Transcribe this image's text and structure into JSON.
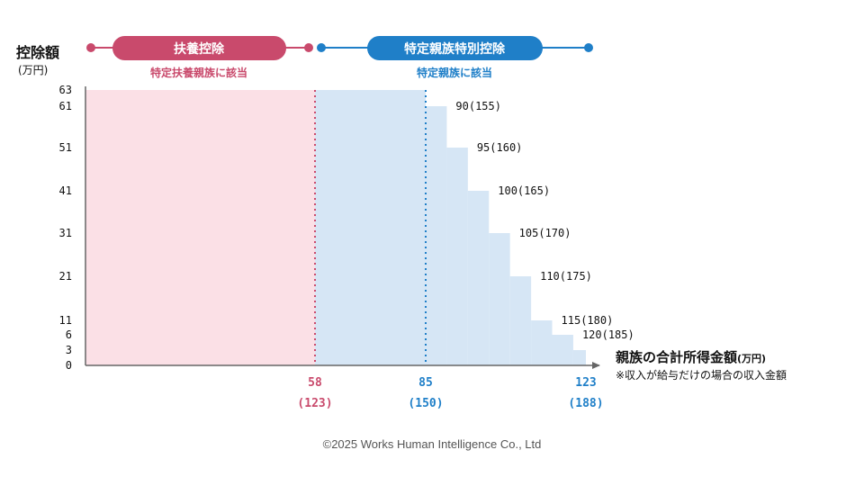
{
  "chart_data": {
    "type": "area",
    "ylabel": "控除額",
    "ylabel_unit": "(万円)",
    "xlabel": "親族の合計所得金額",
    "xlabel_unit": "(万円)",
    "x_note": "※収入が給与だけの場合の収入金額",
    "y_ticks": [
      0,
      3,
      6,
      11,
      21,
      31,
      41,
      51,
      61,
      63
    ],
    "x_ticks": [
      {
        "value": 58,
        "label": "58",
        "sub": "(123)",
        "color": "#c94a6c"
      },
      {
        "value": 85,
        "label": "85",
        "sub": "(150)",
        "color": "#1f7fc8"
      },
      {
        "value": 123,
        "label": "123",
        "sub": "(188)",
        "color": "#1f7fc8"
      }
    ],
    "regions": [
      {
        "name": "扶養控除",
        "subtitle": "特定扶養親族に該当",
        "x_start": 0,
        "x_end": 58,
        "y": 63,
        "color": "#fbe0e6",
        "accent": "#c94a6c"
      },
      {
        "name": "特定親族特別控除",
        "subtitle": "特定親族に該当",
        "x_start": 58,
        "x_end": 123,
        "color": "#d6e6f5",
        "accent": "#1f7fc8"
      }
    ],
    "steps": [
      {
        "x_start": 58,
        "x_end": 85,
        "y": 63,
        "label": ""
      },
      {
        "x_start": 85,
        "x_end": 90,
        "y": 61,
        "label": "90(155)"
      },
      {
        "x_start": 90,
        "x_end": 95,
        "y": 51,
        "label": "95(160)"
      },
      {
        "x_start": 95,
        "x_end": 100,
        "y": 41,
        "label": "100(165)"
      },
      {
        "x_start": 100,
        "x_end": 105,
        "y": 31,
        "label": "105(170)"
      },
      {
        "x_start": 105,
        "x_end": 110,
        "y": 21,
        "label": "110(175)"
      },
      {
        "x_start": 110,
        "x_end": 115,
        "y": 11,
        "label": "115(180)"
      },
      {
        "x_start": 115,
        "x_end": 120,
        "y": 6,
        "label": "120(185)"
      },
      {
        "x_start": 120,
        "x_end": 123,
        "y": 3,
        "label": ""
      }
    ]
  },
  "copyright": "©2025 Works Human Intelligence Co., Ltd"
}
